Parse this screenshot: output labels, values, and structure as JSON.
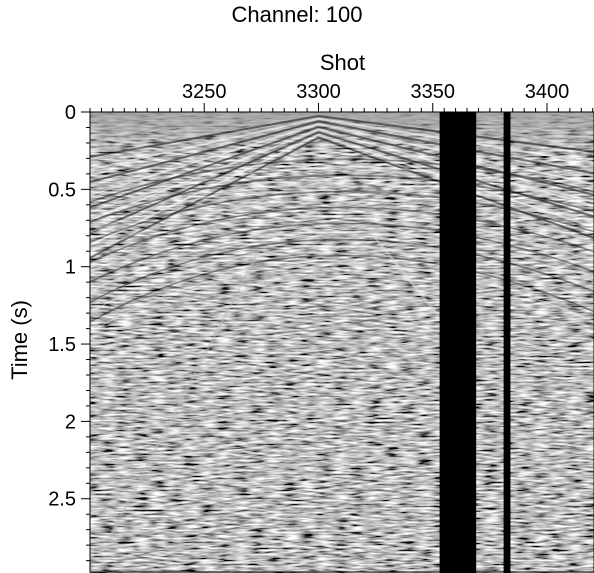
{
  "chart_data": {
    "type": "heatmap",
    "title": "Channel: 100",
    "xlabel": "Shot",
    "ylabel": "Time (s)",
    "colormap": "grayscale",
    "x_axis_position": "top",
    "xlim": [
      3200,
      3421
    ],
    "ylim": [
      0,
      2.98
    ],
    "y_inverted": true,
    "x_ticks": [
      3250,
      3300,
      3350,
      3400
    ],
    "x_tick_labels": [
      "3250",
      "3300",
      "3350",
      "3400"
    ],
    "y_ticks": [
      0,
      0.5,
      1,
      1.5,
      2,
      2.5
    ],
    "y_tick_labels": [
      "0",
      "0.5",
      "1",
      "1.5",
      "2",
      "2.5"
    ],
    "source_shot": 3300,
    "dead_traces": [
      {
        "from": 3353,
        "to": 3369
      },
      {
        "from": 3381,
        "to": 3384
      }
    ],
    "grid": false,
    "legend": "none"
  }
}
